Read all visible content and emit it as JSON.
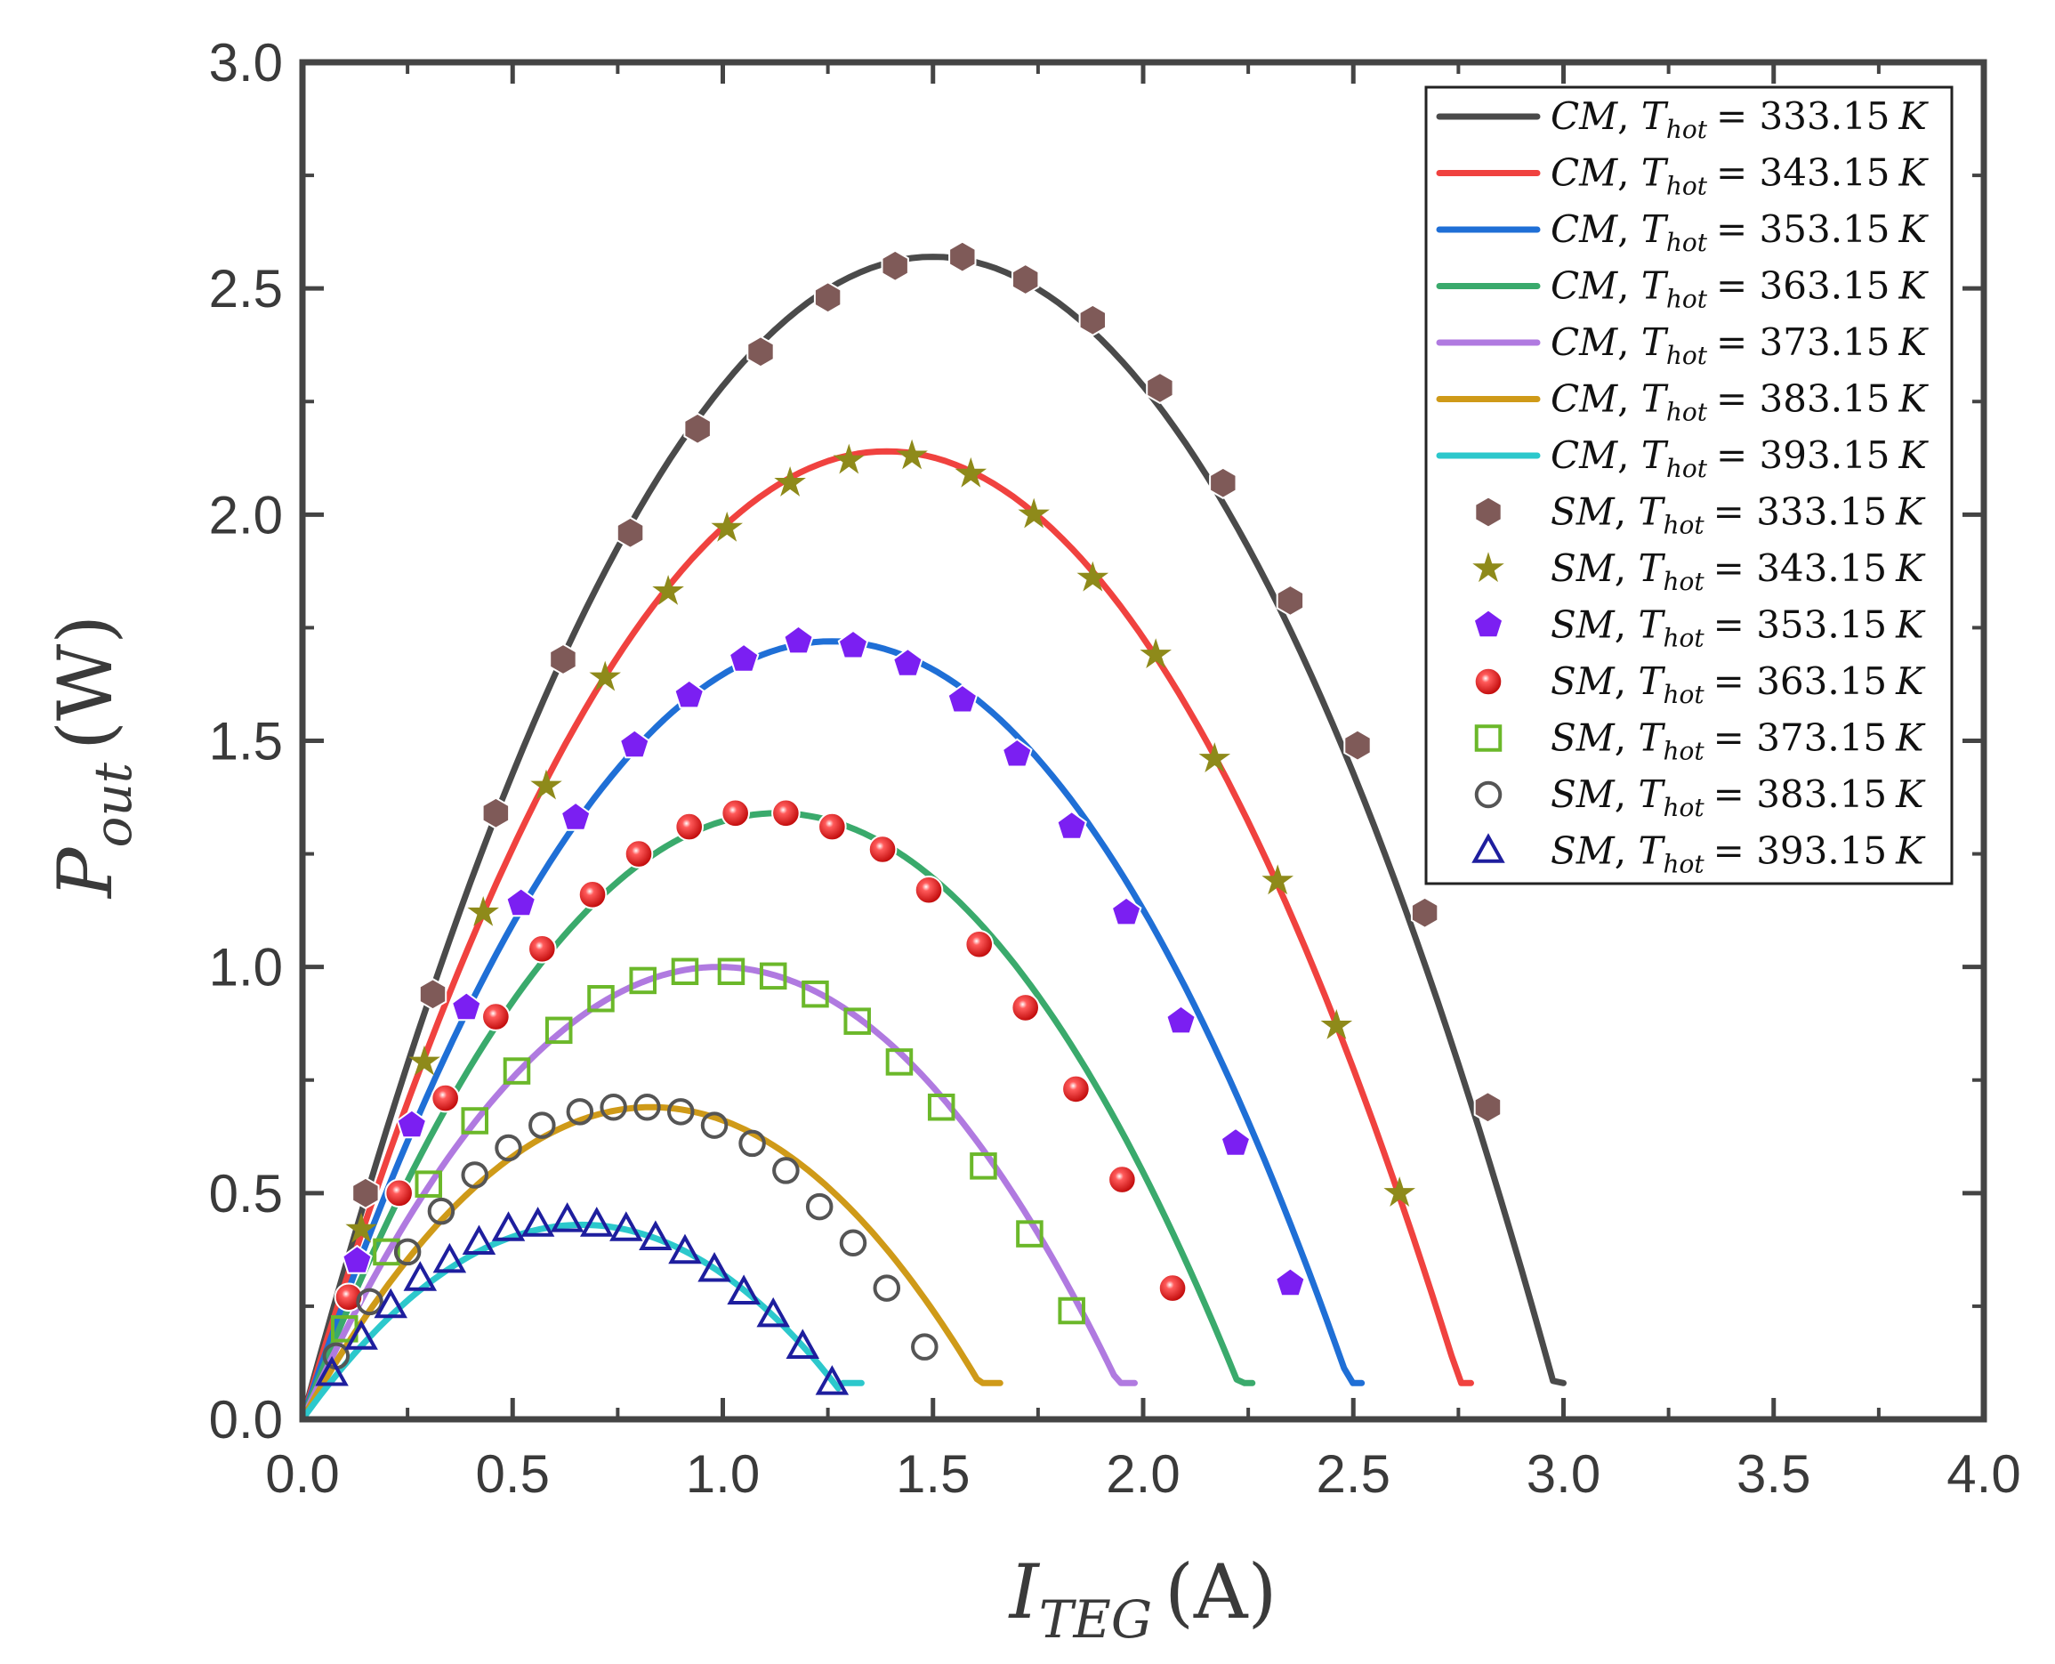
{
  "chart_data": {
    "type": "line",
    "xlabel": {
      "main": "I",
      "sub": "TEG",
      "unit": "(A)"
    },
    "ylabel": {
      "main": "P",
      "sub": "out",
      "unit": "(W)"
    },
    "xlim": [
      0,
      4.0
    ],
    "ylim": [
      0,
      3.0
    ],
    "xticks": [
      0.0,
      0.5,
      1.0,
      1.5,
      2.0,
      2.5,
      3.0,
      3.5,
      4.0
    ],
    "yticks": [
      0.0,
      0.5,
      1.0,
      1.5,
      2.0,
      2.5,
      3.0
    ],
    "xtick_labels": [
      "0.0",
      "0.5",
      "1.0",
      "1.5",
      "2.0",
      "2.5",
      "3.0",
      "3.5",
      "4.0"
    ],
    "ytick_labels": [
      "0.0",
      "0.5",
      "1.0",
      "1.5",
      "2.0",
      "2.5",
      "3.0"
    ],
    "grid": false,
    "legend_position": "top-right",
    "curves": [
      {
        "name": "CM, T_hot = 333.15 K",
        "label": {
          "method": "CM",
          "var": "T",
          "sub": "hot",
          "value": "= 333.15",
          "unit": "K"
        },
        "color": "#4a4a4a",
        "imax": 3.0,
        "pmax": 2.57
      },
      {
        "name": "CM, T_hot = 343.15 K",
        "label": {
          "method": "CM",
          "var": "T",
          "sub": "hot",
          "value": "= 343.15",
          "unit": "K"
        },
        "color": "#f0423f",
        "imax": 2.78,
        "pmax": 2.14
      },
      {
        "name": "CM, T_hot = 353.15 K",
        "label": {
          "method": "CM",
          "var": "T",
          "sub": "hot",
          "value": "= 353.15",
          "unit": "K"
        },
        "color": "#1f6fd6",
        "imax": 2.52,
        "pmax": 1.72
      },
      {
        "name": "CM, T_hot = 363.15 K",
        "label": {
          "method": "CM",
          "var": "T",
          "sub": "hot",
          "value": "= 363.15",
          "unit": "K"
        },
        "color": "#3aaa6c",
        "imax": 2.26,
        "pmax": 1.34
      },
      {
        "name": "CM, T_hot = 373.15 K",
        "label": {
          "method": "CM",
          "var": "T",
          "sub": "hot",
          "value": "= 373.15",
          "unit": "K"
        },
        "color": "#b07ae0",
        "imax": 1.98,
        "pmax": 1.0
      },
      {
        "name": "CM, T_hot = 383.15 K",
        "label": {
          "method": "CM",
          "var": "T",
          "sub": "hot",
          "value": "= 383.15",
          "unit": "K"
        },
        "color": "#cf9a18",
        "imax": 1.66,
        "pmax": 0.69
      },
      {
        "name": "CM, T_hot = 393.15 K",
        "label": {
          "method": "CM",
          "var": "T",
          "sub": "hot",
          "value": "= 393.15",
          "unit": "K"
        },
        "color": "#2cc8cc",
        "imax": 1.33,
        "pmax": 0.43
      }
    ],
    "scatter": [
      {
        "name": "SM, T_hot = 333.15 K",
        "label": {
          "method": "SM",
          "var": "T",
          "sub": "hot",
          "value": "= 333.15",
          "unit": "K"
        },
        "marker": "hexagon",
        "color": "#7f5a58",
        "x": [
          0.15,
          0.31,
          0.46,
          0.62,
          0.78,
          0.94,
          1.09,
          1.25,
          1.41,
          1.57,
          1.72,
          1.88,
          2.04,
          2.19,
          2.35,
          2.51,
          2.67,
          2.82
        ],
        "y": [
          0.5,
          0.94,
          1.34,
          1.68,
          1.96,
          2.19,
          2.36,
          2.48,
          2.55,
          2.57,
          2.52,
          2.43,
          2.28,
          2.07,
          1.81,
          1.49,
          1.12,
          0.69
        ]
      },
      {
        "name": "SM, T_hot = 343.15 K",
        "label": {
          "method": "SM",
          "var": "T",
          "sub": "hot",
          "value": "= 343.15",
          "unit": "K"
        },
        "marker": "star",
        "color": "#8e8a1a",
        "x": [
          0.14,
          0.29,
          0.43,
          0.58,
          0.72,
          0.87,
          1.01,
          1.16,
          1.3,
          1.45,
          1.59,
          1.74,
          1.88,
          2.03,
          2.17,
          2.32,
          2.46,
          2.61
        ],
        "y": [
          0.42,
          0.79,
          1.12,
          1.4,
          1.64,
          1.83,
          1.97,
          2.07,
          2.12,
          2.13,
          2.09,
          2.0,
          1.86,
          1.69,
          1.46,
          1.19,
          0.87,
          0.5
        ]
      },
      {
        "name": "SM, T_hot = 353.15 K",
        "label": {
          "method": "SM",
          "var": "T",
          "sub": "hot",
          "value": "= 353.15",
          "unit": "K"
        },
        "marker": "pentagon",
        "color": "#7b1ff2",
        "x": [
          0.13,
          0.26,
          0.39,
          0.52,
          0.65,
          0.79,
          0.92,
          1.05,
          1.18,
          1.31,
          1.44,
          1.57,
          1.7,
          1.83,
          1.96,
          2.09,
          2.22,
          2.35
        ],
        "y": [
          0.35,
          0.65,
          0.91,
          1.14,
          1.33,
          1.49,
          1.6,
          1.68,
          1.72,
          1.71,
          1.67,
          1.59,
          1.47,
          1.31,
          1.12,
          0.88,
          0.61,
          0.3
        ]
      },
      {
        "name": "SM, T_hot = 363.15 K",
        "label": {
          "method": "SM",
          "var": "T",
          "sub": "hot",
          "value": "= 363.15",
          "unit": "K"
        },
        "marker": "sphere",
        "color": "#e01818",
        "x": [
          0.11,
          0.23,
          0.34,
          0.46,
          0.57,
          0.69,
          0.8,
          0.92,
          1.03,
          1.15,
          1.26,
          1.38,
          1.49,
          1.61,
          1.72,
          1.84,
          1.95,
          2.07
        ],
        "y": [
          0.27,
          0.5,
          0.71,
          0.89,
          1.04,
          1.16,
          1.25,
          1.31,
          1.34,
          1.34,
          1.31,
          1.26,
          1.17,
          1.05,
          0.91,
          0.73,
          0.53,
          0.29
        ]
      },
      {
        "name": "SM, T_hot = 373.15 K",
        "label": {
          "method": "SM",
          "var": "T",
          "sub": "hot",
          "value": "= 373.15",
          "unit": "K"
        },
        "marker": "square",
        "color": "#6bb82a",
        "x": [
          0.1,
          0.2,
          0.3,
          0.41,
          0.51,
          0.61,
          0.71,
          0.81,
          0.91,
          1.02,
          1.12,
          1.22,
          1.32,
          1.42,
          1.52,
          1.62,
          1.73,
          1.83
        ],
        "y": [
          0.2,
          0.37,
          0.52,
          0.66,
          0.77,
          0.86,
          0.93,
          0.97,
          0.99,
          0.99,
          0.98,
          0.94,
          0.88,
          0.79,
          0.69,
          0.56,
          0.41,
          0.24
        ]
      },
      {
        "name": "SM, T_hot = 383.15 K",
        "label": {
          "method": "SM",
          "var": "T",
          "sub": "hot",
          "value": "= 383.15",
          "unit": "K"
        },
        "marker": "circle",
        "color": "#555555",
        "x": [
          0.08,
          0.16,
          0.25,
          0.33,
          0.41,
          0.49,
          0.57,
          0.66,
          0.74,
          0.82,
          0.9,
          0.98,
          1.07,
          1.15,
          1.23,
          1.31,
          1.39,
          1.48
        ],
        "y": [
          0.14,
          0.26,
          0.37,
          0.46,
          0.54,
          0.6,
          0.65,
          0.68,
          0.69,
          0.69,
          0.68,
          0.65,
          0.61,
          0.55,
          0.47,
          0.39,
          0.29,
          0.16
        ]
      },
      {
        "name": "SM, T_hot = 393.15 K",
        "label": {
          "method": "SM",
          "var": "T",
          "sub": "hot",
          "value": "= 393.15",
          "unit": "K"
        },
        "marker": "triangle",
        "color": "#1e1e9e",
        "x": [
          0.07,
          0.14,
          0.21,
          0.28,
          0.35,
          0.42,
          0.49,
          0.56,
          0.63,
          0.7,
          0.77,
          0.84,
          0.91,
          0.98,
          1.05,
          1.12,
          1.19,
          1.26
        ],
        "y": [
          0.1,
          0.18,
          0.25,
          0.31,
          0.35,
          0.39,
          0.42,
          0.43,
          0.44,
          0.43,
          0.42,
          0.4,
          0.37,
          0.33,
          0.28,
          0.23,
          0.16,
          0.08
        ]
      }
    ]
  }
}
